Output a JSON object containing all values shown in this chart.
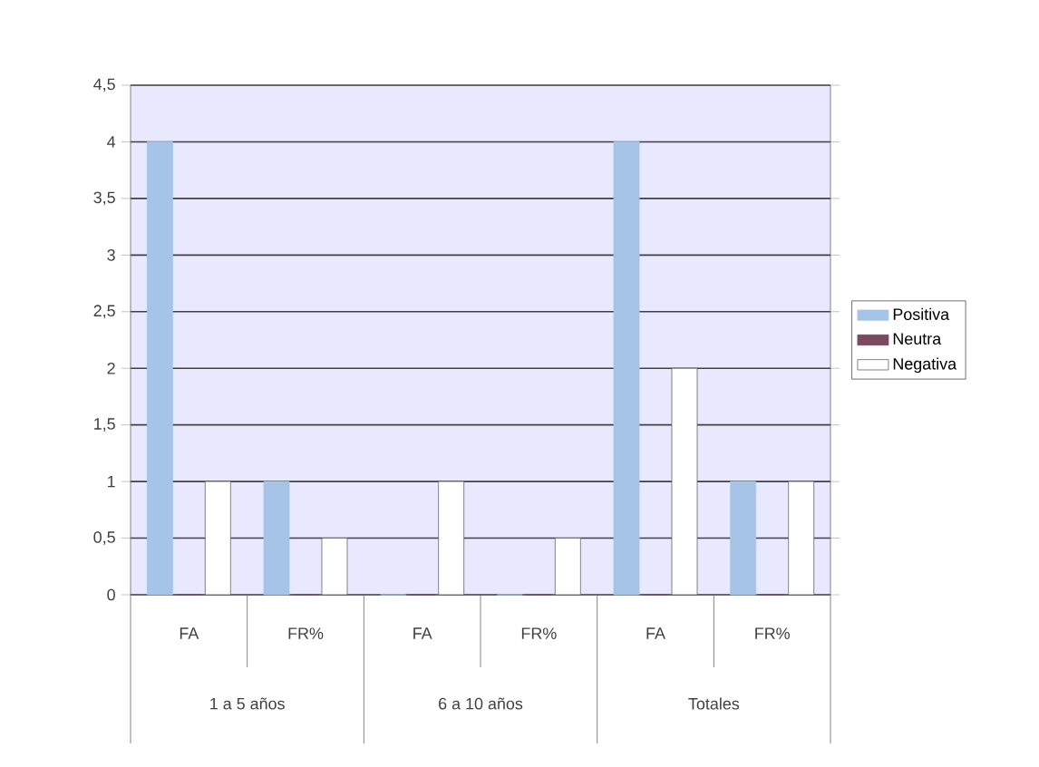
{
  "chart_data": {
    "type": "bar",
    "categories": [
      "FA",
      "FR%",
      "FA",
      "FR%",
      "FA",
      "FR%"
    ],
    "series": [
      {
        "name": "Positiva",
        "color": "#a6c4e8",
        "values": [
          4,
          1,
          0,
          0,
          4,
          1
        ]
      },
      {
        "name": "Neutra",
        "color": "#7b4a5e",
        "values": [
          0,
          0,
          0,
          0,
          0,
          0
        ]
      },
      {
        "name": "Negativa",
        "color": "#ffffff",
        "values": [
          1,
          0.5,
          1,
          0.5,
          2,
          1
        ]
      }
    ],
    "annotations": [
      "1 a 5 años",
      "6 a 10 años",
      "Totales"
    ],
    "ylim": [
      0,
      4.5
    ],
    "yticks": [
      0,
      {
        "value": 0.5,
        "label": "0,5"
      },
      1,
      {
        "value": 1.5,
        "label": "1,5"
      },
      2,
      {
        "value": 2.5,
        "label": "2,5"
      },
      3,
      {
        "value": 3.5,
        "label": "3,5"
      },
      4,
      {
        "value": 4.5,
        "label": "4,5"
      }
    ],
    "grid": "y",
    "legend": "right"
  }
}
